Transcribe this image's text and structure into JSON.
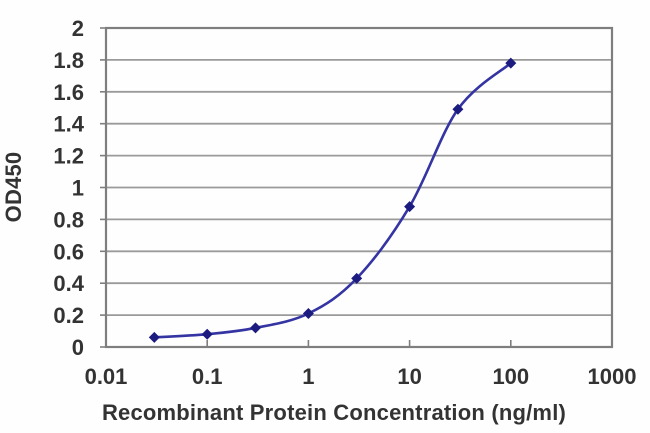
{
  "chart_data": {
    "type": "line",
    "title": "",
    "xlabel": "Recombinant Protein Concentration (ng/ml)",
    "ylabel": "OD450",
    "x_scale": "log",
    "x": [
      0.03,
      0.1,
      0.3,
      1,
      3,
      10,
      30,
      100
    ],
    "y": [
      0.06,
      0.08,
      0.12,
      0.21,
      0.43,
      0.88,
      1.49,
      1.78
    ],
    "xlim": [
      0.01,
      1000
    ],
    "ylim": [
      0,
      2
    ],
    "x_ticks": [
      0.01,
      0.1,
      1,
      10,
      100,
      1000
    ],
    "x_tick_labels": [
      "0.01",
      "0.1",
      "1",
      "10",
      "100",
      "1000"
    ],
    "y_ticks": [
      0,
      0.2,
      0.4,
      0.6,
      0.8,
      1,
      1.2,
      1.4,
      1.6,
      1.8,
      2
    ],
    "y_tick_labels": [
      "0",
      "0.2",
      "0.4",
      "0.6",
      "0.8",
      "1",
      "1.2",
      "1.4",
      "1.6",
      "1.8",
      "2"
    ],
    "grid": "horizontal",
    "legend": "none",
    "marker": "diamond",
    "colors": {
      "line": "#3434A3",
      "marker": "#1C1C80",
      "gridline": "#9A9A9A",
      "frame": "#7E7E7E",
      "text": "#333333"
    }
  }
}
